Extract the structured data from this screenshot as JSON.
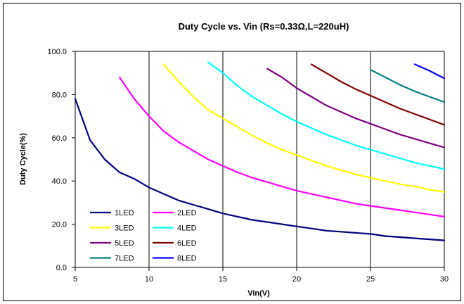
{
  "chart_data": {
    "type": "line",
    "title": "Duty Cycle vs. Vin (Rs=0.33Ω,L=220uH)",
    "xlabel": "Vin(V)",
    "ylabel": "Duty Cycle(%)",
    "xlim": [
      5,
      30
    ],
    "ylim": [
      0,
      100
    ],
    "x_ticks": [
      "5",
      "10",
      "15",
      "20",
      "25",
      "30"
    ],
    "y_ticks": [
      "0.0",
      "20.0",
      "40.0",
      "60.0",
      "80.0",
      "100.0"
    ],
    "grid": "vertical",
    "legend": "bottom-left",
    "series": [
      {
        "name": "1LED",
        "color": "#000080",
        "x": [
          5,
          6,
          7,
          8,
          9,
          10,
          11,
          12,
          13,
          14,
          15,
          16,
          17,
          18,
          19,
          20,
          21,
          22,
          23,
          24,
          25,
          26,
          27,
          28,
          29,
          30
        ],
        "y": [
          78,
          59,
          50,
          44,
          41,
          37,
          34,
          31,
          29,
          27,
          25,
          23.5,
          22,
          21,
          20,
          19,
          18,
          17,
          16.5,
          16,
          15.5,
          14.5,
          14,
          13.5,
          13,
          12.5
        ]
      },
      {
        "name": "2LED",
        "color": "#FF00FF",
        "x": [
          8,
          9,
          10,
          11,
          12,
          13,
          14,
          15,
          16,
          17,
          18,
          19,
          20,
          21,
          22,
          23,
          24,
          25,
          26,
          27,
          28,
          29,
          30
        ],
        "y": [
          88,
          78,
          70,
          63,
          58,
          54,
          50,
          47,
          44,
          41.5,
          39.5,
          37.5,
          35.5,
          34,
          32.5,
          31,
          29.5,
          28.5,
          27.5,
          26.5,
          25.5,
          24.5,
          23.5
        ]
      },
      {
        "name": "3LED",
        "color": "#FFFF00",
        "x": [
          11,
          12,
          13,
          14,
          15,
          16,
          17,
          18,
          19,
          20,
          21,
          22,
          23,
          24,
          25,
          26,
          27,
          28,
          29,
          30
        ],
        "y": [
          94,
          86,
          79,
          73,
          69,
          65,
          61,
          57.5,
          54.5,
          52,
          49.5,
          47,
          45,
          43,
          41.5,
          40,
          38.5,
          37.5,
          36,
          35
        ]
      },
      {
        "name": "4LED",
        "color": "#00FFFF",
        "x": [
          14,
          15,
          16,
          17,
          18,
          19,
          20,
          21,
          22,
          23,
          24,
          25,
          26,
          27,
          28,
          29,
          30
        ],
        "y": [
          95,
          90,
          84,
          79,
          75,
          71,
          67.5,
          64.5,
          61.5,
          59,
          56.5,
          54.5,
          52.5,
          50.5,
          48.5,
          47,
          45.5
        ]
      },
      {
        "name": "5LED",
        "color": "#800080",
        "x": [
          18,
          19,
          20,
          21,
          22,
          23,
          24,
          25,
          26,
          27,
          28,
          29,
          30
        ],
        "y": [
          92,
          88,
          83,
          79,
          75,
          72,
          69,
          66.5,
          64,
          61.5,
          59.5,
          57.5,
          55.5
        ]
      },
      {
        "name": "6LED",
        "color": "#800000",
        "x": [
          21,
          22,
          23,
          24,
          25,
          26,
          27,
          28,
          29,
          30
        ],
        "y": [
          94,
          90,
          86,
          82.5,
          79.5,
          76.5,
          73.5,
          71,
          68.5,
          66
        ]
      },
      {
        "name": "7LED",
        "color": "#008080",
        "x": [
          25,
          26,
          27,
          28,
          29,
          30
        ],
        "y": [
          91.5,
          88,
          84.5,
          81.5,
          79,
          76.5
        ]
      },
      {
        "name": "8LED",
        "color": "#0000FF",
        "x": [
          28,
          29,
          30
        ],
        "y": [
          94,
          91,
          87.5
        ]
      }
    ]
  }
}
